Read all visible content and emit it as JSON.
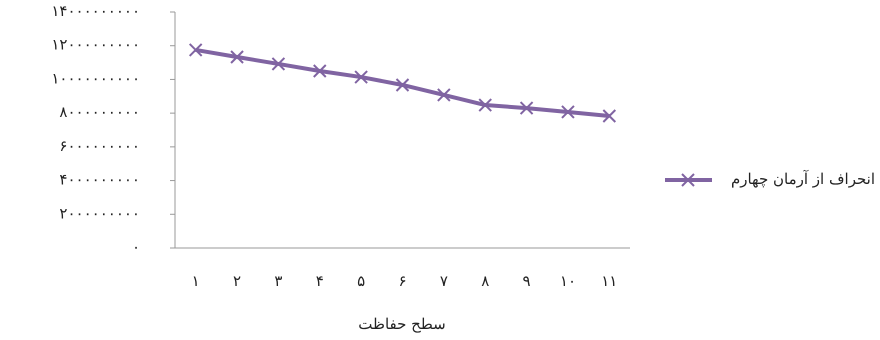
{
  "chart_data": {
    "type": "line",
    "x_label": "سطح حفاظت",
    "categories": [
      "۱",
      "۲",
      "۳",
      "۴",
      "۵",
      "۶",
      "۷",
      "۸",
      "۹",
      "۱۰",
      "۱۱"
    ],
    "series": [
      {
        "name": "انحراف از آرمان چهارم",
        "color": "#8064a2",
        "values": [
          11750000000,
          11330000000,
          10920000000,
          10500000000,
          10140000000,
          9670000000,
          9080000000,
          8480000000,
          8300000000,
          8070000000,
          7830000000
        ]
      }
    ],
    "ylim": [
      0,
      14000000000
    ],
    "yticks": [
      {
        "value": 0,
        "label": "۰"
      },
      {
        "value": 2000000000,
        "label": "۲۰۰۰۰۰۰۰۰۰"
      },
      {
        "value": 4000000000,
        "label": "۴۰۰۰۰۰۰۰۰۰"
      },
      {
        "value": 6000000000,
        "label": "۶۰۰۰۰۰۰۰۰۰"
      },
      {
        "value": 8000000000,
        "label": "۸۰۰۰۰۰۰۰۰۰"
      },
      {
        "value": 10000000000,
        "label": "۱۰۰۰۰۰۰۰۰۰۰"
      },
      {
        "value": 12000000000,
        "label": "۱۲۰۰۰۰۰۰۰۰۰"
      },
      {
        "value": 14000000000,
        "label": "۱۴۰۰۰۰۰۰۰۰۰"
      }
    ],
    "legend": "right",
    "grid": false
  }
}
